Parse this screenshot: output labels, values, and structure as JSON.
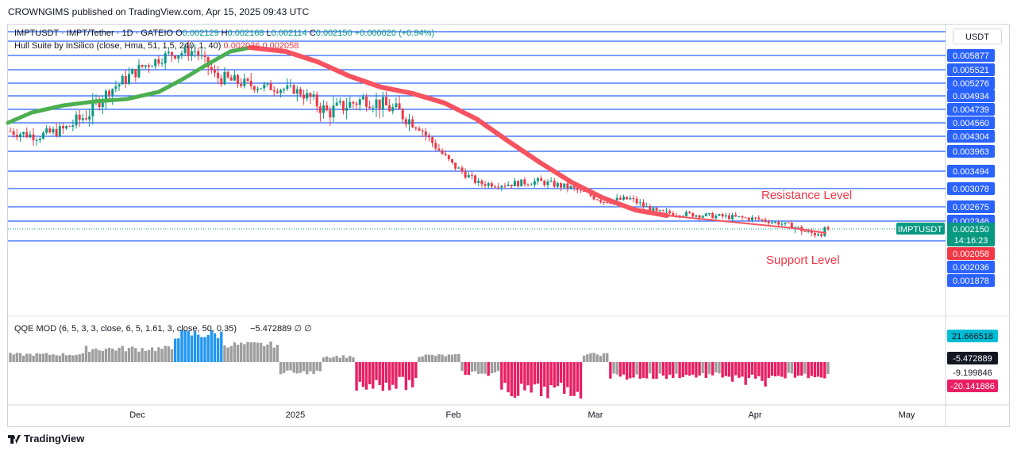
{
  "publisher": "CROWNGIMS published on TradingView.com, Apr 15, 2025 09:43 UTC",
  "footer_brand": "TradingView",
  "currency_button": "USDT",
  "legend": {
    "symbol": "IMPTUSDT · IMPT/Tether · 1D · GATEIO",
    "o_label": "O",
    "o": "0.002129",
    "h_label": "H",
    "h": "0.002168",
    "l_label": "L",
    "l": "0.002114",
    "c_label": "C",
    "c": "0.002150",
    "change": "+0.000020 (+0.94%)",
    "indicator": "Hull Suite by InSilico (close, Hma, 51, 1.5, 240, 1, 40)",
    "ind_v1": "0.002036",
    "ind_v2": "0.002058",
    "qqe": "QQE MOD (6, 5, 3, 3, close, 6, 5, 1.61, 3, close, 50, 0.35)",
    "qqe_value": "−5.472889",
    "qqe_sym1": "∅",
    "qqe_sym2": "∅"
  },
  "chart_data": {
    "type": "candlestick",
    "price_axis_labels": [
      "0.005877",
      "0.005521",
      "0.005276",
      "0.004934",
      "0.004739",
      "0.004560",
      "0.004304",
      "0.003963",
      "0.003494",
      "0.003078",
      "0.002675",
      "0.002346",
      "0.002150",
      "0.002058",
      "0.002036",
      "0.001878"
    ],
    "horizontal_levels": [
      0.005877,
      0.005521,
      0.005276,
      0.004934,
      0.004739,
      0.00456,
      0.004304,
      0.003963,
      0.003494,
      0.003078,
      0.002675,
      0.002346,
      0.002036
    ],
    "last_price": 0.00215,
    "last_price_symbol": "IMPTUSDT",
    "countdown": "14:16:23",
    "hull_value_red": "0.002058",
    "hull_value_blue": "0.002036",
    "annotations": {
      "resistance": "Resistance Level",
      "support": "Support Level"
    },
    "x_ticks": [
      "Dec",
      "2025",
      "Feb",
      "Mar",
      "Apr",
      "May"
    ],
    "qqe_axis_labels": [
      "21.666518",
      "-5.472889",
      "-9.199846",
      "-20.141886"
    ],
    "colors": {
      "up": "#089981",
      "down": "#f23645",
      "hull_up": "#4caf50",
      "hull_down": "#f7525f",
      "level": "#2962ff",
      "qqe_blue": "#2196f3",
      "qqe_gray": "#9e9e9e",
      "qqe_pink": "#e91e63"
    }
  }
}
